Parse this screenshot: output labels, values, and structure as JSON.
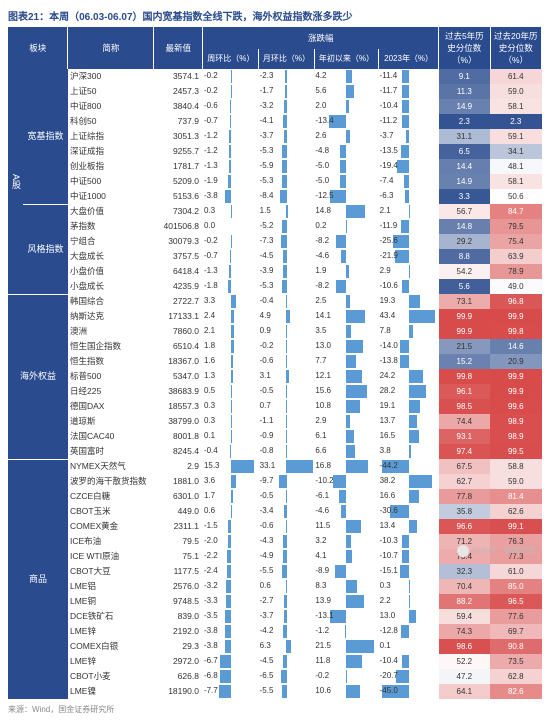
{
  "title": "图表21：本周（06.03-06.07）国内宽基指数全线下跌，海外权益指数涨多跌少",
  "source": "来源：Wind，国金证券研究所",
  "watermark": "公众号：弛策论市",
  "aside_label": "A股",
  "columns": {
    "sector": "板块",
    "name": "简称",
    "last": "最新值",
    "chg_group": "涨跌幅",
    "wow": "周环比（%）",
    "mom": "月环比（%）",
    "ytd": "年初以来（%）",
    "y2023": "2023年（%）",
    "p5y": "过去5年历史分位数（%）",
    "p20y": "过去20年历史分位数（%）"
  },
  "bar_scales": {
    "wow": 18,
    "mom": 35,
    "ytd": 25,
    "y2023": 50
  },
  "bar_color": "#5b9bd5",
  "heat_low": "#2a4b8d",
  "heat_high": "#d84b4b",
  "heat_mid": "#ffffff",
  "groups": [
    {
      "label": "宽基指数",
      "rows": [
        {
          "name": "沪深300",
          "last": "3574.1",
          "wow": -0.2,
          "mom": -2.3,
          "ytd": 4.2,
          "y2023": -11.4,
          "p5": 9.1,
          "p20": 61.4
        },
        {
          "name": "上证50",
          "last": "2457.3",
          "wow": -0.2,
          "mom": -1.7,
          "ytd": 5.6,
          "y2023": -11.7,
          "p5": 11.3,
          "p20": 59.0
        },
        {
          "name": "中证800",
          "last": "3840.4",
          "wow": -0.6,
          "mom": -3.2,
          "ytd": 2.0,
          "y2023": -10.4,
          "p5": 14.9,
          "p20": 58.1
        },
        {
          "name": "科创50",
          "last": "737.9",
          "wow": -0.7,
          "mom": -4.1,
          "ytd": -13.4,
          "y2023": -11.2,
          "p5": 2.3,
          "p20": 2.3
        },
        {
          "name": "上证综指",
          "last": "3051.3",
          "wow": -1.2,
          "mom": -3.7,
          "ytd": 2.6,
          "y2023": -3.7,
          "p5": 31.1,
          "p20": 59.1
        },
        {
          "name": "深证成指",
          "last": "9255.7",
          "wow": -1.2,
          "mom": -5.3,
          "ytd": -4.8,
          "y2023": -13.5,
          "p5": 6.5,
          "p20": 34.1
        },
        {
          "name": "创业板指",
          "last": "1781.7",
          "wow": -1.3,
          "mom": -5.9,
          "ytd": -5.0,
          "y2023": -19.4,
          "p5": 14.4,
          "p20": 48.1
        },
        {
          "name": "中证500",
          "last": "5209.0",
          "wow": -1.9,
          "mom": -5.3,
          "ytd": -5.0,
          "y2023": -7.4,
          "p5": 14.9,
          "p20": 58.1
        },
        {
          "name": "中证1000",
          "last": "5153.6",
          "wow": -3.8,
          "mom": -8.4,
          "ytd": -12.5,
          "y2023": -6.3,
          "p5": 3.3,
          "p20": 50.6
        }
      ]
    },
    {
      "label": "风格指数",
      "rows": [
        {
          "name": "大盘价值",
          "last": "7304.2",
          "wow": 0.3,
          "mom": 1.5,
          "ytd": 14.8,
          "y2023": 2.1,
          "p5": 56.7,
          "p20": 84.7
        },
        {
          "name": "茅指数",
          "last": "401506.8",
          "wow": 0.0,
          "mom": -5.2,
          "ytd": 0.2,
          "y2023": -11.9,
          "p5": 14.8,
          "p20": 79.5
        },
        {
          "name": "宁组合",
          "last": "30079.3",
          "wow": -0.2,
          "mom": -7.3,
          "ytd": -8.2,
          "y2023": -25.6,
          "p5": 29.2,
          "p20": 75.4
        },
        {
          "name": "大盘成长",
          "last": "3757.5",
          "wow": -0.7,
          "mom": -4.5,
          "ytd": -4.6,
          "y2023": -21.9,
          "p5": 8.8,
          "p20": 63.9
        },
        {
          "name": "小盘价值",
          "last": "6418.4",
          "wow": -1.3,
          "mom": -3.9,
          "ytd": 1.9,
          "y2023": 2.9,
          "p5": 54.2,
          "p20": 78.9
        },
        {
          "name": "小盘成长",
          "last": "4235.9",
          "wow": -1.8,
          "mom": -5.3,
          "ytd": -8.2,
          "y2023": -10.6,
          "p5": 5.6,
          "p20": 49.0
        }
      ]
    },
    {
      "label": "海外权益",
      "rows": [
        {
          "name": "韩国综合",
          "last": "2722.7",
          "wow": 3.3,
          "mom": -0.4,
          "ytd": 2.5,
          "y2023": 19.3,
          "p5": 73.1,
          "p20": 96.8
        },
        {
          "name": "纳斯达克",
          "last": "17133.1",
          "wow": 2.4,
          "mom": 4.9,
          "ytd": 14.1,
          "y2023": 43.4,
          "p5": 99.9,
          "p20": 99.9
        },
        {
          "name": "澳洲",
          "last": "7860.0",
          "wow": 2.1,
          "mom": 0.9,
          "ytd": 3.5,
          "y2023": 7.8,
          "p5": 99.9,
          "p20": 99.8
        },
        {
          "name": "恒生国企指数",
          "last": "6510.4",
          "wow": 1.8,
          "mom": -0.2,
          "ytd": 13.0,
          "y2023": -14.0,
          "p5": 21.5,
          "p20": 14.6
        },
        {
          "name": "恒生指数",
          "last": "18367.0",
          "wow": 1.6,
          "mom": -0.6,
          "ytd": 7.7,
          "y2023": -13.8,
          "p5": 15.2,
          "p20": 20.9
        },
        {
          "name": "标普500",
          "last": "5347.0",
          "wow": 1.3,
          "mom": 3.1,
          "ytd": 12.1,
          "y2023": 24.2,
          "p5": 99.8,
          "p20": 99.9
        },
        {
          "name": "日经225",
          "last": "38683.9",
          "wow": 0.5,
          "mom": -0.5,
          "ytd": 15.6,
          "y2023": 28.2,
          "p5": 96.1,
          "p20": 99.9
        },
        {
          "name": "德国DAX",
          "last": "18557.3",
          "wow": 0.3,
          "mom": 0.7,
          "ytd": 10.8,
          "y2023": 19.1,
          "p5": 98.5,
          "p20": 99.6
        },
        {
          "name": "道琼斯",
          "last": "38799.0",
          "wow": 0.3,
          "mom": -1.1,
          "ytd": 2.9,
          "y2023": 13.7,
          "p5": 74.4,
          "p20": 98.9
        },
        {
          "name": "法国CAC40",
          "last": "8001.8",
          "wow": 0.1,
          "mom": -0.9,
          "ytd": 6.1,
          "y2023": 16.5,
          "p5": 93.1,
          "p20": 98.9
        },
        {
          "name": "英国富时",
          "last": "8245.4",
          "wow": -0.4,
          "mom": -0.8,
          "ytd": 6.6,
          "y2023": 3.8,
          "p5": 97.4,
          "p20": 99.5
        }
      ]
    },
    {
      "label": "商品",
      "rows": [
        {
          "name": "NYMEX天然气",
          "last": "2.9",
          "wow": 15.3,
          "mom": 33.1,
          "ytd": 16.8,
          "y2023": -44.2,
          "p5": 67.5,
          "p20": 58.8
        },
        {
          "name": "波罗的海干散货指数",
          "last": "1881.0",
          "wow": 3.6,
          "mom": -9.7,
          "ytd": -10.2,
          "y2023": 38.2,
          "p5": 62.7,
          "p20": 59.0
        },
        {
          "name": "CZCE白糖",
          "last": "6301.0",
          "wow": 1.7,
          "mom": -0.5,
          "ytd": -6.1,
          "y2023": 16.6,
          "p5": 77.8,
          "p20": 81.4
        },
        {
          "name": "CBOT玉米",
          "last": "449.0",
          "wow": 0.6,
          "mom": -3.4,
          "ytd": -4.6,
          "y2023": -30.6,
          "p5": 35.8,
          "p20": 62.6
        },
        {
          "name": "COMEX黄金",
          "last": "2311.1",
          "wow": -1.5,
          "mom": -0.6,
          "ytd": 11.5,
          "y2023": 13.4,
          "p5": 96.6,
          "p20": 99.1
        },
        {
          "name": "ICE布油",
          "last": "79.5",
          "wow": -2.0,
          "mom": -4.3,
          "ytd": 3.2,
          "y2023": -10.3,
          "p5": 71.2,
          "p20": 76.3
        },
        {
          "name": "ICE WTI原油",
          "last": "75.1",
          "wow": -2.2,
          "mom": -4.9,
          "ytd": 4.1,
          "y2023": -10.7,
          "p5": 73.4,
          "p20": 77.3
        },
        {
          "name": "CBOT大豆",
          "last": "1177.5",
          "wow": -2.4,
          "mom": -5.5,
          "ytd": -8.9,
          "y2023": -15.1,
          "p5": 32.3,
          "p20": 61.0
        },
        {
          "name": "LME铝",
          "last": "2576.0",
          "wow": -3.2,
          "mom": 0.6,
          "ytd": 8.3,
          "y2023": 0.3,
          "p5": 70.4,
          "p20": 85.0
        },
        {
          "name": "LME铜",
          "last": "9748.5",
          "wow": -3.3,
          "mom": -2.7,
          "ytd": 13.9,
          "y2023": 2.2,
          "p5": 88.2,
          "p20": 96.5
        },
        {
          "name": "DCE铁矿石",
          "last": "839.0",
          "wow": -3.5,
          "mom": -3.7,
          "ytd": -13.1,
          "y2023": 13.0,
          "p5": 59.4,
          "p20": 77.6
        },
        {
          "name": "LME锌",
          "last": "2192.0",
          "wow": -3.8,
          "mom": -4.2,
          "ytd": -1.2,
          "y2023": -12.8,
          "p5": 74.3,
          "p20": 69.7
        },
        {
          "name": "COMEX白银",
          "last": "29.3",
          "wow": -3.8,
          "mom": 6.3,
          "ytd": 21.5,
          "y2023": 0.1,
          "p5": 98.6,
          "p20": 90.8
        },
        {
          "name": "LME锌",
          "last": "2972.0",
          "wow": -6.7,
          "mom": -4.5,
          "ytd": 11.8,
          "y2023": -10.4,
          "p5": 52.2,
          "p20": 73.5
        },
        {
          "name": "CBOT小麦",
          "last": "626.8",
          "wow": -6.8,
          "mom": -6.5,
          "ytd": -0.2,
          "y2023": -20.7,
          "p5": 47.2,
          "p20": 62.8
        },
        {
          "name": "LME镍",
          "last": "18190.0",
          "wow": -7.7,
          "mom": -5.5,
          "ytd": 10.6,
          "y2023": -45.0,
          "p5": 64.1,
          "p20": 82.6
        }
      ]
    }
  ]
}
